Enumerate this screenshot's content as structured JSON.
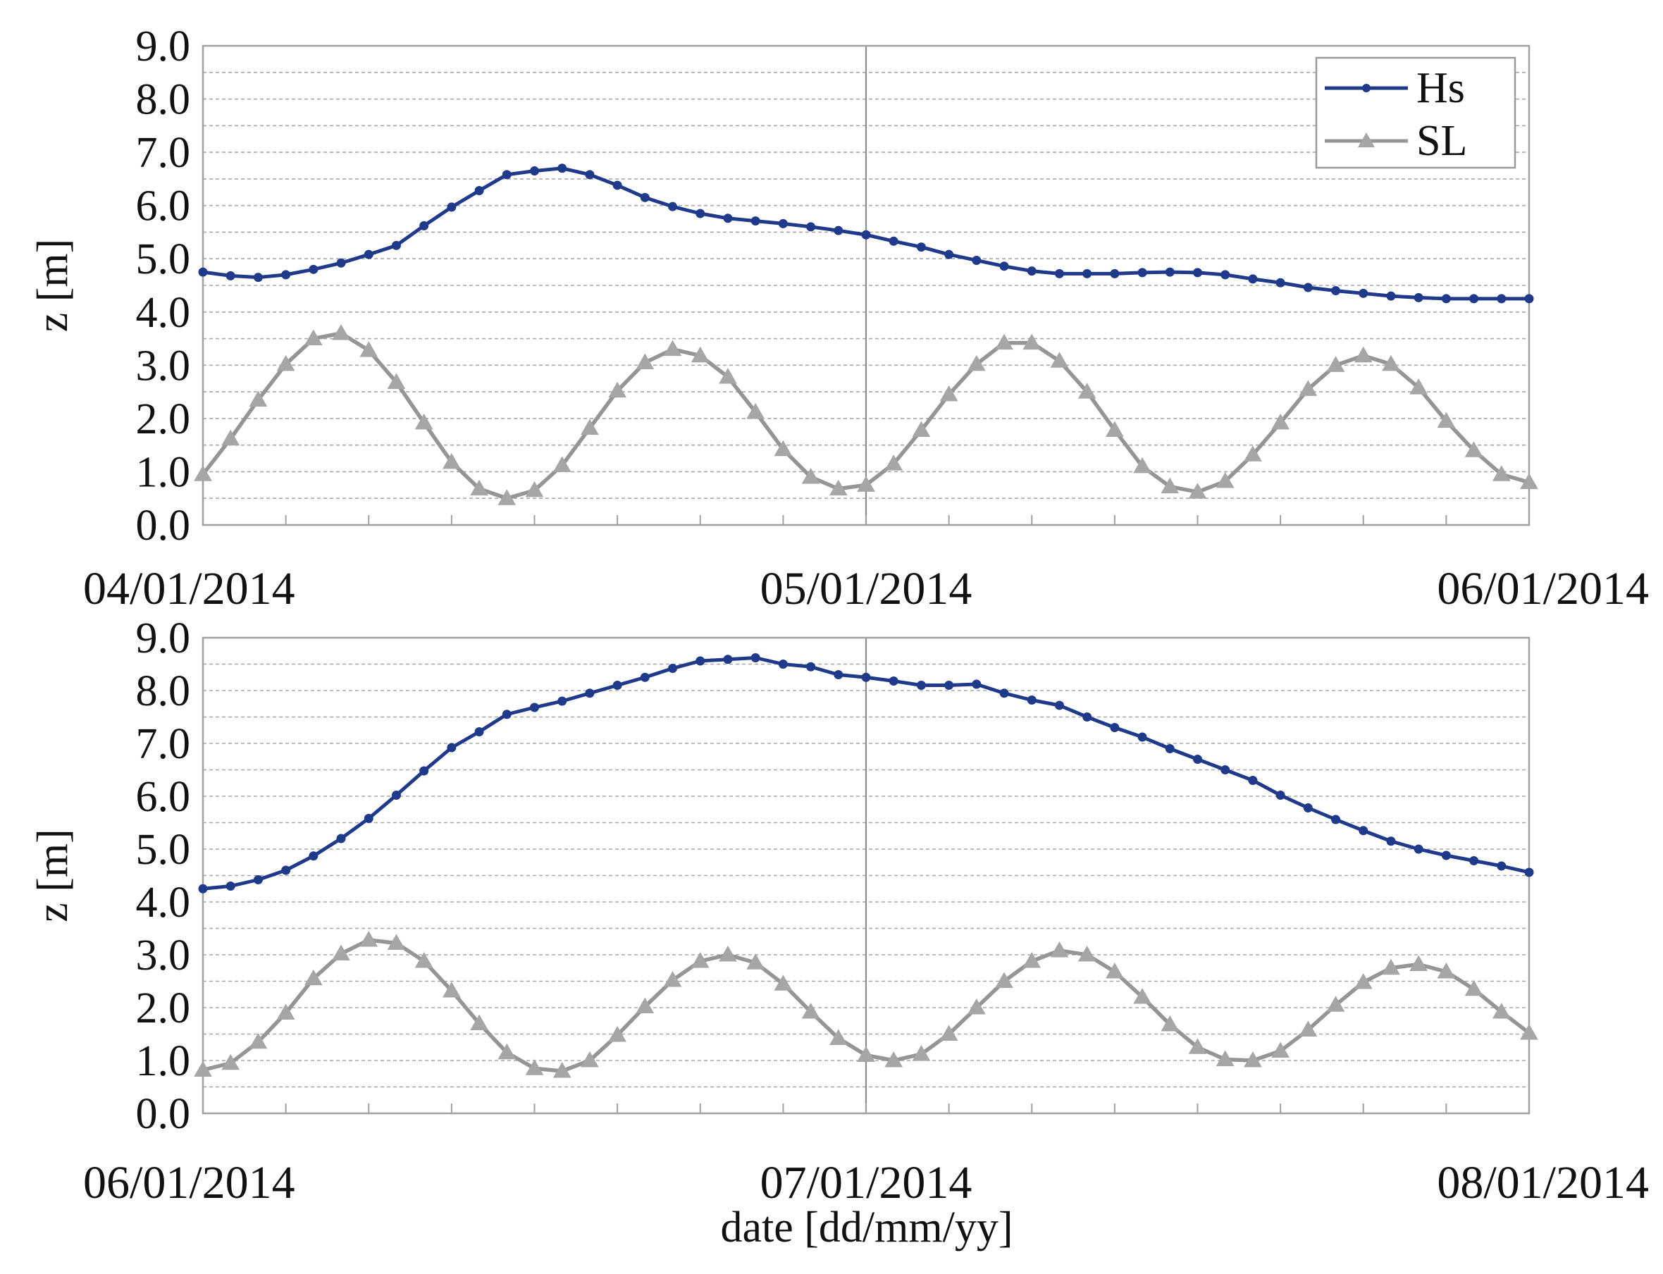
{
  "colors": {
    "hs": "#1f3a8a",
    "sl": "#959595"
  },
  "icons": {
    "hs_marker": "circle-marker-icon",
    "sl_marker": "triangle-marker-icon"
  },
  "xlabel": "date [dd/mm/yy]",
  "legend": {
    "items": [
      "Hs",
      "SL"
    ],
    "position": "top-right of upper panel"
  },
  "chart_data": [
    {
      "type": "line",
      "ylabel": "z [m]",
      "ylim": [
        0,
        9
      ],
      "yticks": [
        "0.0",
        "1.0",
        "2.0",
        "3.0",
        "4.0",
        "5.0",
        "6.0",
        "7.0",
        "8.0",
        "9.0"
      ],
      "xlim": [
        "04/01/2014",
        "06/01/2014"
      ],
      "xticks": [
        "04/01/2014",
        "05/01/2014",
        "06/01/2014"
      ],
      "grid": true,
      "series": [
        {
          "name": "Hs",
          "marker": "circle",
          "values": [
            4.75,
            4.68,
            4.65,
            4.7,
            4.8,
            4.92,
            5.08,
            5.25,
            5.62,
            5.97,
            6.28,
            6.58,
            6.65,
            6.7,
            6.58,
            6.38,
            6.15,
            5.98,
            5.85,
            5.76,
            5.71,
            5.66,
            5.6,
            5.53,
            5.45,
            5.33,
            5.22,
            5.08,
            4.97,
            4.86,
            4.77,
            4.72,
            4.72,
            4.72,
            4.74,
            4.75,
            4.74,
            4.7,
            4.62,
            4.55,
            4.46,
            4.4,
            4.35,
            4.3,
            4.27,
            4.25,
            4.25,
            4.25,
            4.25
          ]
        },
        {
          "name": "SL",
          "marker": "triangle",
          "values": [
            0.95,
            1.62,
            2.35,
            3.02,
            3.5,
            3.6,
            3.28,
            2.68,
            1.92,
            1.18,
            0.68,
            0.5,
            0.65,
            1.12,
            1.82,
            2.52,
            3.05,
            3.3,
            3.18,
            2.78,
            2.12,
            1.42,
            0.9,
            0.68,
            0.75,
            1.15,
            1.78,
            2.45,
            3.02,
            3.42,
            3.42,
            3.08,
            2.5,
            1.78,
            1.1,
            0.72,
            0.62,
            0.82,
            1.32,
            1.92,
            2.55,
            3.0,
            3.18,
            3.02,
            2.58,
            1.95,
            1.4,
            0.95,
            0.8
          ]
        }
      ]
    },
    {
      "type": "line",
      "ylabel": "z [m]",
      "ylim": [
        0,
        9
      ],
      "yticks": [
        "0.0",
        "1.0",
        "2.0",
        "3.0",
        "4.0",
        "5.0",
        "6.0",
        "7.0",
        "8.0",
        "9.0"
      ],
      "xlim": [
        "06/01/2014",
        "08/01/2014"
      ],
      "xticks": [
        "06/01/2014",
        "07/01/2014",
        "08/01/2014"
      ],
      "grid": true,
      "series": [
        {
          "name": "Hs",
          "marker": "circle",
          "values": [
            4.25,
            4.3,
            4.42,
            4.6,
            4.87,
            5.2,
            5.58,
            6.02,
            6.48,
            6.92,
            7.22,
            7.55,
            7.68,
            7.8,
            7.95,
            8.1,
            8.25,
            8.42,
            8.56,
            8.59,
            8.62,
            8.5,
            8.45,
            8.3,
            8.25,
            8.18,
            8.1,
            8.1,
            8.12,
            7.95,
            7.82,
            7.72,
            7.5,
            7.3,
            7.12,
            6.9,
            6.7,
            6.5,
            6.3,
            6.02,
            5.78,
            5.56,
            5.35,
            5.15,
            5.0,
            4.88,
            4.78,
            4.68,
            4.56
          ]
        },
        {
          "name": "SL",
          "marker": "triangle",
          "values": [
            0.82,
            0.95,
            1.35,
            1.9,
            2.55,
            3.02,
            3.28,
            3.22,
            2.88,
            2.32,
            1.7,
            1.15,
            0.85,
            0.8,
            1.0,
            1.48,
            2.02,
            2.52,
            2.88,
            3.0,
            2.85,
            2.45,
            1.92,
            1.42,
            1.1,
            1.0,
            1.12,
            1.5,
            2.0,
            2.5,
            2.88,
            3.08,
            3.0,
            2.68,
            2.2,
            1.68,
            1.25,
            1.02,
            1.0,
            1.18,
            1.58,
            2.05,
            2.48,
            2.75,
            2.82,
            2.68,
            2.35,
            1.92,
            1.52
          ]
        }
      ]
    }
  ]
}
